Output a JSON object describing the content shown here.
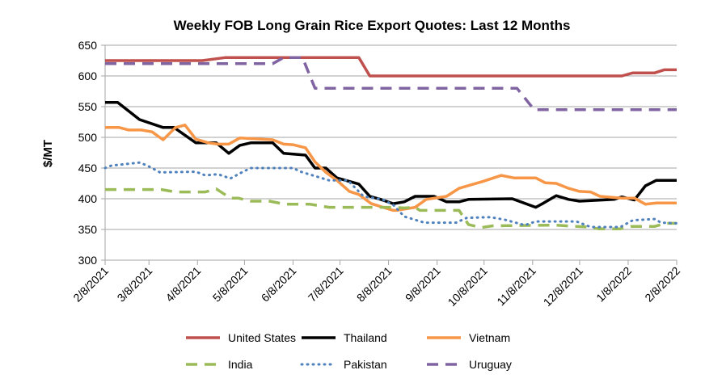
{
  "chart_data": {
    "type": "line",
    "title": "Weekly FOB Long Grain Rice Export Quotes:  Last 12 Months",
    "xlabel": "",
    "ylabel": "$/MT",
    "ylim": [
      300,
      650
    ],
    "yticks": [
      300,
      350,
      400,
      450,
      500,
      550,
      600,
      650
    ],
    "x_units": "days since 2/8/2021",
    "xlim": [
      0,
      365
    ],
    "xticks": [
      {
        "day": 0,
        "label": "2/8/2021"
      },
      {
        "day": 28,
        "label": "3/8/2021"
      },
      {
        "day": 59,
        "label": "4/8/2021"
      },
      {
        "day": 89,
        "label": "5/8/2021"
      },
      {
        "day": 120,
        "label": "6/8/2021"
      },
      {
        "day": 150,
        "label": "7/8/2021"
      },
      {
        "day": 181,
        "label": "8/8/2021"
      },
      {
        "day": 212,
        "label": "9/8/2021"
      },
      {
        "day": 242,
        "label": "10/8/2021"
      },
      {
        "day": 273,
        "label": "11/8/2021"
      },
      {
        "day": 303,
        "label": "12/8/2021"
      },
      {
        "day": 334,
        "label": "1/8/2022"
      },
      {
        "day": 365,
        "label": "2/8/2022"
      }
    ],
    "grid": true,
    "legend_position": "bottom",
    "series": [
      {
        "name": "United States",
        "color": "#c0504d",
        "style": "solid",
        "points": [
          [
            0,
            625
          ],
          [
            62,
            625
          ],
          [
            77,
            630
          ],
          [
            162,
            630
          ],
          [
            169,
            600
          ],
          [
            330,
            600
          ],
          [
            337,
            605
          ],
          [
            351,
            605
          ],
          [
            357,
            610
          ],
          [
            365,
            610
          ]
        ]
      },
      {
        "name": "Thailand",
        "color": "#000000",
        "style": "solid",
        "points": [
          [
            0,
            557
          ],
          [
            8,
            557
          ],
          [
            22,
            529
          ],
          [
            37,
            516
          ],
          [
            44,
            516
          ],
          [
            58,
            491
          ],
          [
            71,
            491
          ],
          [
            79,
            474
          ],
          [
            86,
            487
          ],
          [
            93,
            491
          ],
          [
            107,
            491
          ],
          [
            114,
            474
          ],
          [
            128,
            471
          ],
          [
            134,
            450
          ],
          [
            141,
            450
          ],
          [
            148,
            434
          ],
          [
            162,
            424
          ],
          [
            169,
            404
          ],
          [
            176,
            399
          ],
          [
            184,
            392
          ],
          [
            191,
            395
          ],
          [
            198,
            404
          ],
          [
            210,
            404
          ],
          [
            218,
            395
          ],
          [
            226,
            395
          ],
          [
            232,
            399
          ],
          [
            260,
            400
          ],
          [
            275,
            386
          ],
          [
            280,
            393
          ],
          [
            288,
            405
          ],
          [
            296,
            399
          ],
          [
            303,
            396
          ],
          [
            325,
            399
          ],
          [
            330,
            403
          ],
          [
            338,
            398
          ],
          [
            345,
            421
          ],
          [
            352,
            430
          ],
          [
            365,
            430
          ]
        ]
      },
      {
        "name": "Vietnam",
        "color": "#f79646",
        "style": "solid",
        "points": [
          [
            0,
            516
          ],
          [
            9,
            516
          ],
          [
            15,
            512
          ],
          [
            23,
            512
          ],
          [
            30,
            509
          ],
          [
            37,
            496
          ],
          [
            45,
            516
          ],
          [
            51,
            520
          ],
          [
            58,
            497
          ],
          [
            66,
            491
          ],
          [
            72,
            489
          ],
          [
            79,
            489
          ],
          [
            86,
            499
          ],
          [
            107,
            496
          ],
          [
            114,
            489
          ],
          [
            120,
            488
          ],
          [
            128,
            483
          ],
          [
            134,
            460
          ],
          [
            141,
            443
          ],
          [
            148,
            430
          ],
          [
            156,
            412
          ],
          [
            162,
            407
          ],
          [
            170,
            392
          ],
          [
            184,
            381
          ],
          [
            186,
            381
          ],
          [
            198,
            386
          ],
          [
            205,
            399
          ],
          [
            218,
            404
          ],
          [
            226,
            417
          ],
          [
            241,
            428
          ],
          [
            253,
            438
          ],
          [
            261,
            434
          ],
          [
            275,
            434
          ],
          [
            281,
            426
          ],
          [
            288,
            425
          ],
          [
            296,
            417
          ],
          [
            303,
            412
          ],
          [
            310,
            411
          ],
          [
            316,
            404
          ],
          [
            330,
            401
          ],
          [
            338,
            401
          ],
          [
            345,
            391
          ],
          [
            352,
            393
          ],
          [
            365,
            393
          ]
        ]
      },
      {
        "name": "India",
        "color": "#9bbb59",
        "style": "dashed",
        "points": [
          [
            0,
            415
          ],
          [
            36,
            415
          ],
          [
            45,
            411
          ],
          [
            64,
            411
          ],
          [
            71,
            416
          ],
          [
            80,
            401
          ],
          [
            85,
            401
          ],
          [
            93,
            396
          ],
          [
            105,
            396
          ],
          [
            115,
            391
          ],
          [
            131,
            391
          ],
          [
            143,
            386
          ],
          [
            172,
            386
          ],
          [
            184,
            386
          ],
          [
            191,
            385
          ],
          [
            198,
            386
          ],
          [
            201,
            381
          ],
          [
            226,
            381
          ],
          [
            232,
            358
          ],
          [
            240,
            353
          ],
          [
            248,
            356
          ],
          [
            288,
            357
          ],
          [
            308,
            354
          ],
          [
            315,
            351
          ],
          [
            329,
            351
          ],
          [
            336,
            355
          ],
          [
            351,
            355
          ],
          [
            358,
            360
          ],
          [
            365,
            360
          ]
        ]
      },
      {
        "name": "Pakistan",
        "color": "#4f81bd",
        "style": "dotted",
        "points": [
          [
            0,
            450
          ],
          [
            4,
            454
          ],
          [
            22,
            459
          ],
          [
            27,
            454
          ],
          [
            35,
            443
          ],
          [
            58,
            444
          ],
          [
            64,
            438
          ],
          [
            72,
            440
          ],
          [
            80,
            433
          ],
          [
            88,
            444
          ],
          [
            93,
            450
          ],
          [
            120,
            450
          ],
          [
            125,
            444
          ],
          [
            134,
            437
          ],
          [
            143,
            430
          ],
          [
            155,
            430
          ],
          [
            160,
            417
          ],
          [
            165,
            404
          ],
          [
            177,
            399
          ],
          [
            184,
            390
          ],
          [
            191,
            371
          ],
          [
            204,
            361
          ],
          [
            224,
            361
          ],
          [
            231,
            369
          ],
          [
            246,
            370
          ],
          [
            255,
            366
          ],
          [
            268,
            357
          ],
          [
            275,
            363
          ],
          [
            301,
            363
          ],
          [
            310,
            354
          ],
          [
            329,
            354
          ],
          [
            337,
            365
          ],
          [
            351,
            367
          ],
          [
            355,
            361
          ],
          [
            365,
            360
          ]
        ]
      },
      {
        "name": "Uruguay",
        "color": "#8064a2",
        "style": "dashed",
        "points": [
          [
            0,
            620
          ],
          [
            107,
            620
          ],
          [
            114,
            630
          ],
          [
            126,
            630
          ],
          [
            134,
            580
          ],
          [
            263,
            580
          ],
          [
            274,
            545
          ],
          [
            365,
            545
          ]
        ]
      }
    ]
  }
}
